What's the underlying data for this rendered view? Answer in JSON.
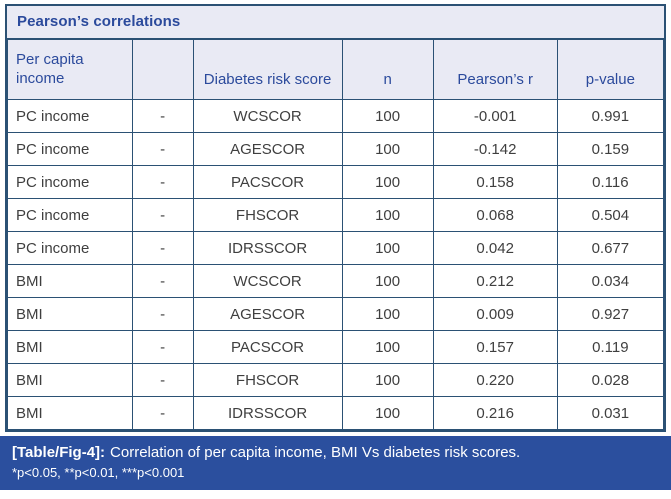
{
  "title": "Pearson’s correlations",
  "table": {
    "headers": [
      "Per capita income",
      "",
      "Diabetes risk score",
      "n",
      "Pearson’s r",
      "p-value"
    ],
    "rows": [
      [
        "PC income",
        "-",
        "WCSCOR",
        "100",
        "-0.001",
        "0.991"
      ],
      [
        "PC income",
        "-",
        "AGESCOR",
        "100",
        "-0.142",
        "0.159"
      ],
      [
        "PC income",
        "-",
        "PACSCOR",
        "100",
        "0.158",
        "0.116"
      ],
      [
        "PC income",
        "-",
        "FHSCOR",
        "100",
        "0.068",
        "0.504"
      ],
      [
        "PC income",
        "-",
        "IDRSSCOR",
        "100",
        "0.042",
        "0.677"
      ],
      [
        "BMI",
        "-",
        "WCSCOR",
        "100",
        "0.212",
        "0.034"
      ],
      [
        "BMI",
        "-",
        "AGESCOR",
        "100",
        "0.009",
        "0.927"
      ],
      [
        "BMI",
        "-",
        "PACSCOR",
        "100",
        "0.157",
        "0.119"
      ],
      [
        "BMI",
        "-",
        "FHSCOR",
        "100",
        "0.220",
        "0.028"
      ],
      [
        "BMI",
        "-",
        "IDRSSCOR",
        "100",
        "0.216",
        "0.031"
      ]
    ]
  },
  "caption": {
    "label": "[Table/Fig-4]:",
    "text": "Correlation of per capita income, BMI Vs diabetes risk scores.",
    "footnote": "*p<0.05, **p<0.01, ***p<0.001"
  },
  "colors": {
    "header_bg": "#e9eaf4",
    "border": "#2b5174",
    "header_text": "#2b4a9c",
    "body_text": "#3f3f3f",
    "caption_bg": "#2b4f9e",
    "caption_text": "#ffffff"
  }
}
